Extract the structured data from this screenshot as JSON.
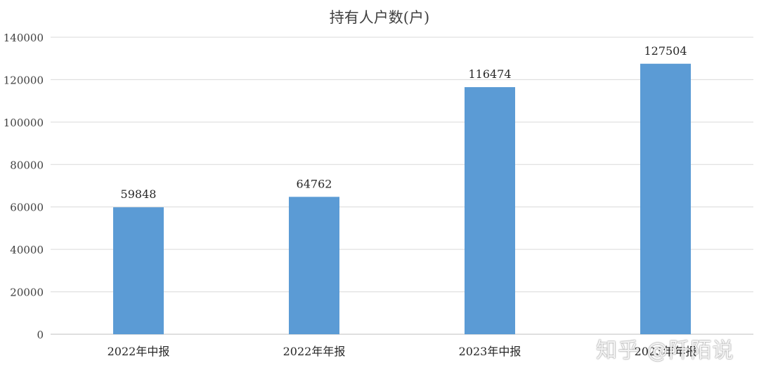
{
  "chart_data": {
    "type": "bar",
    "title": "持有人户数(户)",
    "categories": [
      "2022年中报",
      "2022年年报",
      "2023年中报",
      "2023年年报"
    ],
    "values": [
      59848,
      64762,
      116474,
      127504
    ],
    "ylim": [
      0,
      140000
    ],
    "yticks": [
      0,
      20000,
      40000,
      60000,
      80000,
      100000,
      120000,
      140000
    ],
    "grid": true,
    "bar_color": "#5b9bd5",
    "grid_color": "#d9d9d9"
  },
  "watermark": "知乎 @阡陌说"
}
